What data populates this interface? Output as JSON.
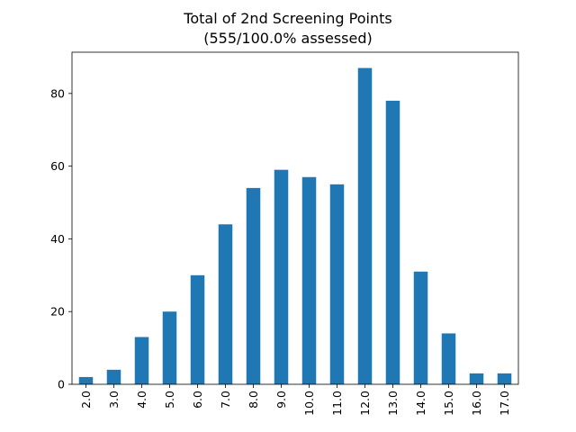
{
  "chart_data": {
    "type": "bar",
    "title": "Total of 2nd Screening Points",
    "subtitle": "(555/100.0% assessed)",
    "xlabel": "",
    "ylabel": "",
    "categories": [
      "2.0",
      "3.0",
      "4.0",
      "5.0",
      "6.0",
      "7.0",
      "8.0",
      "9.0",
      "10.0",
      "11.0",
      "12.0",
      "13.0",
      "14.0",
      "15.0",
      "16.0",
      "17.0"
    ],
    "values": [
      2,
      4,
      13,
      20,
      30,
      44,
      54,
      59,
      57,
      55,
      87,
      78,
      31,
      14,
      3,
      3
    ],
    "ylim": [
      0,
      91.35
    ],
    "yticks": [
      0,
      20,
      40,
      60,
      80
    ],
    "grid": false,
    "bar_color": "#1f77b4"
  }
}
